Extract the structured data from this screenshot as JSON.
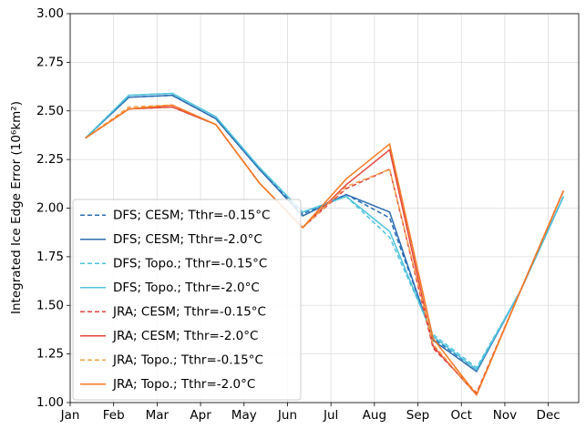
{
  "chart_data": {
    "type": "line",
    "y_label": "Integrated Ice Edge Error (10⁶km²)",
    "x": [
      1.35,
      2.35,
      3.35,
      4.35,
      5.35,
      6.35,
      7.35,
      8.35,
      9.35,
      10.35,
      11.35,
      12.35
    ],
    "xlim": [
      1,
      12.7
    ],
    "xticks": [
      {
        "value": 1,
        "label": "Jan"
      },
      {
        "value": 2,
        "label": "Feb"
      },
      {
        "value": 3,
        "label": "Mar"
      },
      {
        "value": 4,
        "label": "Apr"
      },
      {
        "value": 5,
        "label": "May"
      },
      {
        "value": 6,
        "label": "Jun"
      },
      {
        "value": 7,
        "label": "Jul"
      },
      {
        "value": 8,
        "label": "Aug"
      },
      {
        "value": 9,
        "label": "Sep"
      },
      {
        "value": 10,
        "label": "Oct"
      },
      {
        "value": 11,
        "label": "Nov"
      },
      {
        "value": 12,
        "label": "Dec"
      }
    ],
    "ylim": [
      1,
      3
    ],
    "yticks": [
      {
        "value": 1,
        "label": "1.00"
      },
      {
        "value": 1.25,
        "label": "1.25"
      },
      {
        "value": 1.5,
        "label": "1.50"
      },
      {
        "value": 1.75,
        "label": "1.75"
      },
      {
        "value": 2,
        "label": "2.00"
      },
      {
        "value": 2.25,
        "label": "2.25"
      },
      {
        "value": 2.5,
        "label": "2.50"
      },
      {
        "value": 2.75,
        "label": "2.75"
      },
      {
        "value": 3,
        "label": "3.00"
      }
    ],
    "grid": true,
    "legend": "lower left",
    "series": [
      {
        "name": "DFS; CESM; Tthr=-0.15°C",
        "color": "#2a6db3",
        "dashed": true,
        "values": [
          2.36,
          2.57,
          2.58,
          2.46,
          2.2,
          1.97,
          2.07,
          1.95,
          1.33,
          1.17,
          1.57,
          2.06
        ]
      },
      {
        "name": "DFS; CESM; Tthr=-2.0°C",
        "color": "#2a6db3",
        "dashed": false,
        "values": [
          2.36,
          2.57,
          2.58,
          2.46,
          2.2,
          1.96,
          2.07,
          1.98,
          1.32,
          1.16,
          1.57,
          2.06
        ]
      },
      {
        "name": "DFS; Topo.; Tthr=-0.15°C",
        "color": "#4fc3dc",
        "dashed": true,
        "values": [
          2.36,
          2.58,
          2.59,
          2.47,
          2.21,
          1.98,
          2.06,
          1.85,
          1.35,
          1.18,
          1.57,
          2.06
        ]
      },
      {
        "name": "DFS; Topo.; Tthr=-2.0°C",
        "color": "#4fc3dc",
        "dashed": false,
        "values": [
          2.36,
          2.58,
          2.59,
          2.47,
          2.21,
          1.98,
          2.06,
          1.88,
          1.34,
          1.17,
          1.57,
          2.06
        ]
      },
      {
        "name": "JRA; CESM; Tthr=-0.15°C",
        "color": "#e2453b",
        "dashed": true,
        "values": [
          2.36,
          2.51,
          2.52,
          2.43,
          2.13,
          1.9,
          2.1,
          2.2,
          1.28,
          1.05,
          1.57,
          2.09
        ]
      },
      {
        "name": "JRA; CESM; Tthr=-2.0°C",
        "color": "#e2453b",
        "dashed": false,
        "values": [
          2.36,
          2.51,
          2.52,
          2.43,
          2.13,
          1.9,
          2.12,
          2.3,
          1.29,
          1.04,
          1.57,
          2.09
        ]
      },
      {
        "name": "JRA; Topo.; Tthr=-0.15°C",
        "color": "#f5a04a",
        "dashed": true,
        "values": [
          2.36,
          2.52,
          2.53,
          2.43,
          2.13,
          1.9,
          2.11,
          2.2,
          1.3,
          1.04,
          1.57,
          2.09
        ]
      },
      {
        "name": "JRA; Topo.; Tthr=-2.0°C",
        "color": "#f47a22",
        "dashed": false,
        "values": [
          2.36,
          2.51,
          2.53,
          2.43,
          2.13,
          1.9,
          2.15,
          2.33,
          1.33,
          1.04,
          1.57,
          2.09
        ]
      }
    ]
  }
}
